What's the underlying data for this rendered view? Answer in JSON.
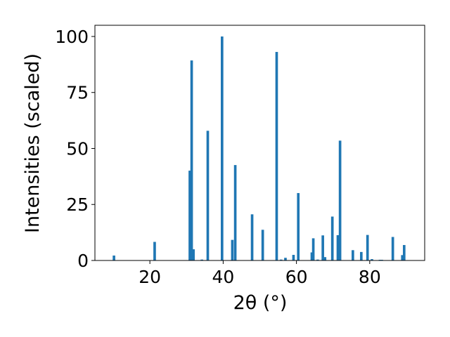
{
  "chart_data": {
    "type": "bar",
    "xlabel": "2θ (°)",
    "ylabel": "Intensities (scaled)",
    "xlim": [
      5,
      95
    ],
    "ylim": [
      0,
      105
    ],
    "xticks": [
      20,
      40,
      60,
      80
    ],
    "yticks": [
      0,
      25,
      50,
      75,
      100
    ],
    "grid": false,
    "bar_color": "#1f77b4",
    "bar_width": 0.7,
    "x": [
      10.2,
      21.3,
      30.9,
      31.4,
      31.9,
      34.2,
      35.8,
      39.7,
      42.5,
      43.3,
      47.9,
      50.8,
      54.6,
      55.8,
      57.0,
      59.2,
      60.5,
      64.2,
      64.6,
      65.8,
      67.2,
      67.8,
      69.8,
      71.3,
      71.9,
      75.4,
      77.7,
      79.4,
      80.6,
      82.8,
      83.3,
      86.3,
      88.9,
      89.4
    ],
    "y": [
      2.2,
      8.3,
      40.1,
      89.3,
      5.0,
      0.4,
      57.9,
      100,
      9.2,
      42.6,
      20.6,
      13.7,
      93.1,
      0.4,
      1.2,
      2.5,
      30.1,
      3.6,
      9.9,
      0.4,
      11.2,
      1.5,
      19.6,
      11.3,
      53.5,
      4.6,
      3.8,
      11.4,
      0.6,
      0.3,
      0.3,
      10.5,
      2.4,
      6.9
    ]
  }
}
